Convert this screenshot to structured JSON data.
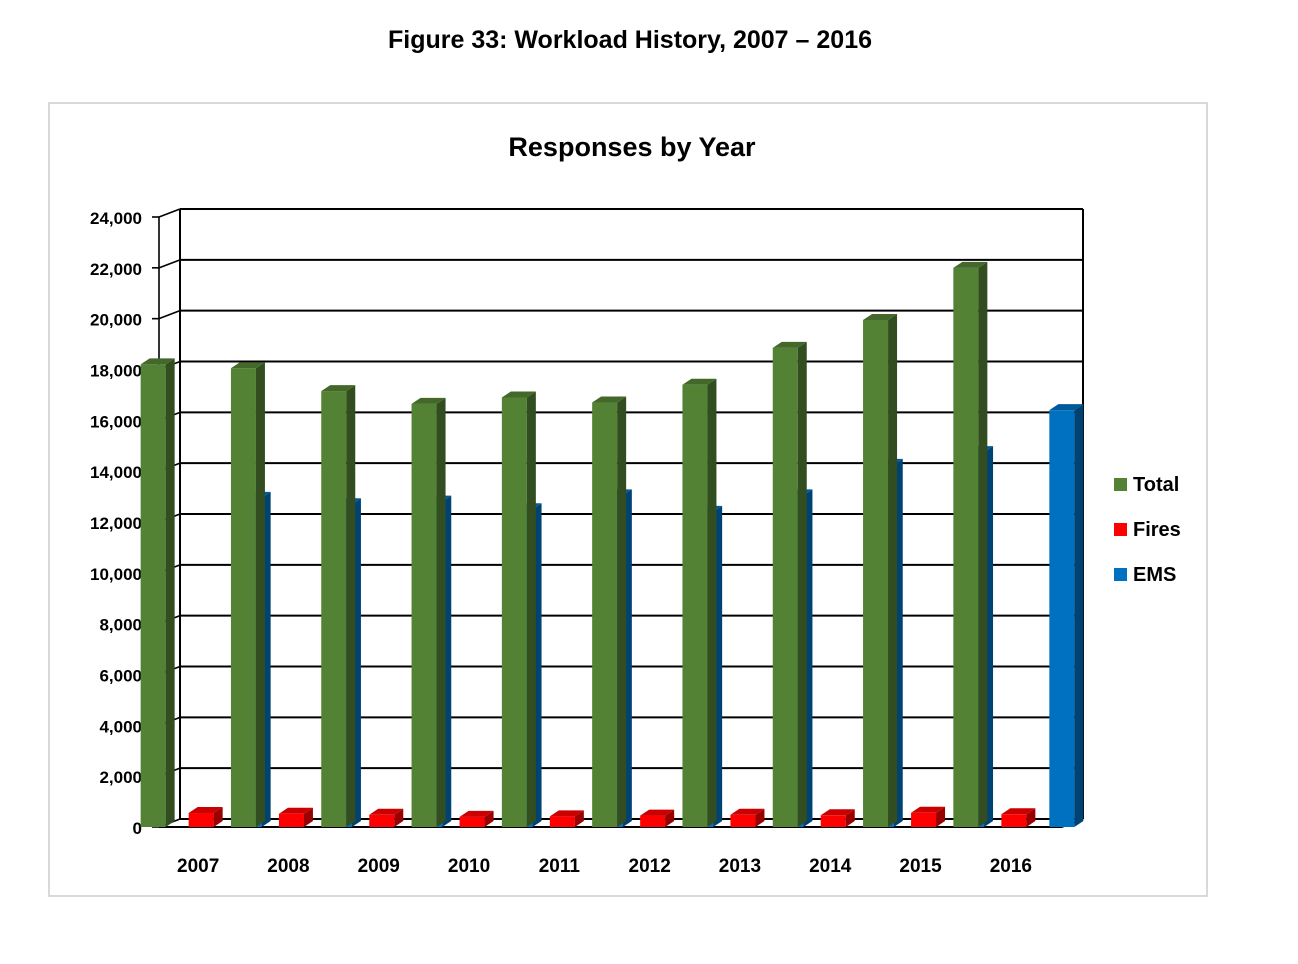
{
  "figure_title": "Figure 33: Workload History, 2007 – 2016",
  "chart_data": {
    "type": "bar",
    "title": "Responses by Year",
    "xlabel": "",
    "ylabel": "",
    "categories": [
      "2007",
      "2008",
      "2009",
      "2010",
      "2011",
      "2012",
      "2013",
      "2014",
      "2015",
      "2016"
    ],
    "series": [
      {
        "name": "Total",
        "color": "#548235",
        "values": [
          18200,
          18050,
          17150,
          16650,
          16900,
          16700,
          17400,
          18850,
          19950,
          22000
        ]
      },
      {
        "name": "Fires",
        "color": "#ff0000",
        "values": [
          550,
          520,
          480,
          400,
          420,
          450,
          480,
          460,
          560,
          500
        ]
      },
      {
        "name": "EMS",
        "color": "#0070c0",
        "values": [
          12950,
          12700,
          12800,
          12500,
          13050,
          12400,
          13050,
          14250,
          14750,
          16400
        ]
      }
    ],
    "ylim": [
      0,
      24000
    ],
    "yticks": [
      "0",
      "2,000",
      "4,000",
      "6,000",
      "8,000",
      "10,000",
      "12,000",
      "14,000",
      "16,000",
      "18,000",
      "20,000",
      "22,000",
      "24,000"
    ],
    "grid": true,
    "legend": "right",
    "style": "3d-clustered-column"
  }
}
